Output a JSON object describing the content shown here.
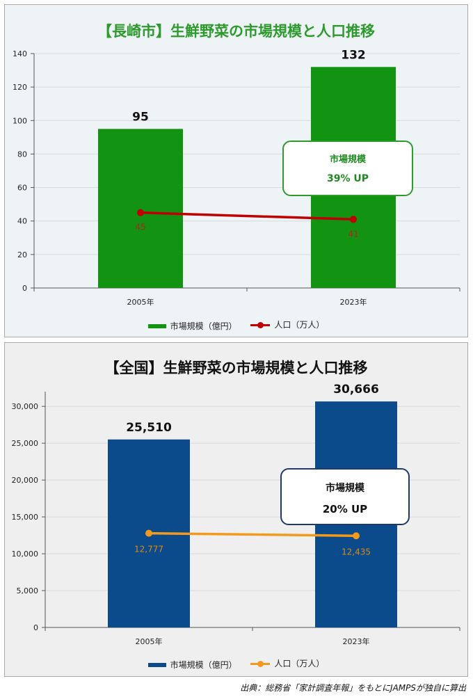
{
  "source_note": "出典：総務省「家計調査年報」をもとにJAMPSが独自に算出",
  "chart_data": [
    {
      "type": "bar",
      "title": "【長崎市】生鮮野菜の市場規模と人口推移",
      "categories": [
        "2005年",
        "2023年"
      ],
      "series": [
        {
          "name": "市場規模（億円）",
          "type": "bar",
          "values": [
            95,
            132
          ],
          "color": "#129312",
          "labels": [
            "95",
            "132"
          ]
        },
        {
          "name": "人口（万人）",
          "type": "line",
          "values": [
            45,
            41
          ],
          "color": "#c00000",
          "label_color": "#b22222",
          "labels": [
            "45",
            "41"
          ]
        }
      ],
      "ylim": [
        0,
        140
      ],
      "yticks": [
        0,
        20,
        40,
        60,
        80,
        100,
        120,
        140
      ],
      "ytick_labels": [
        "0",
        "20",
        "40",
        "60",
        "80",
        "100",
        "120",
        "140"
      ],
      "grid": true,
      "legend": "bottom",
      "callout": {
        "line1": "市場規模",
        "line2": "39% UP"
      }
    },
    {
      "type": "bar",
      "title": "【全国】生鮮野菜の市場規模と人口推移",
      "categories": [
        "2005年",
        "2023年"
      ],
      "series": [
        {
          "name": "市場規模（億円）",
          "type": "bar",
          "values": [
            25510,
            30666
          ],
          "color": "#0b4a8b",
          "labels": [
            "25,510",
            "30,666"
          ]
        },
        {
          "name": "人口（万人）",
          "type": "line",
          "values": [
            12777,
            12435
          ],
          "color": "#f39a1e",
          "label_color": "#e08a10",
          "labels": [
            "12,777",
            "12,435"
          ]
        }
      ],
      "ylim": [
        0,
        32000
      ],
      "yticks": [
        0,
        5000,
        10000,
        15000,
        20000,
        25000,
        30000
      ],
      "ytick_labels": [
        "0",
        "5,000",
        "10,000",
        "15,000",
        "20,000",
        "25,000",
        "30,000"
      ],
      "grid": true,
      "legend": "bottom",
      "callout": {
        "line1": "市場規模",
        "line2": "20% UP"
      }
    }
  ]
}
